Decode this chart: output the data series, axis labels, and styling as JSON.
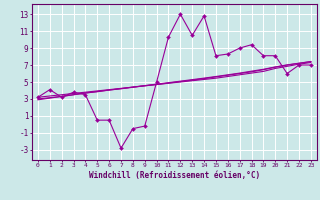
{
  "x": [
    0,
    1,
    2,
    3,
    4,
    5,
    6,
    7,
    8,
    9,
    10,
    11,
    12,
    13,
    14,
    15,
    16,
    17,
    18,
    19,
    20,
    21,
    22,
    23
  ],
  "y_main": [
    3.2,
    4.1,
    3.2,
    3.8,
    3.5,
    0.5,
    0.5,
    -2.8,
    -0.5,
    -0.2,
    5.0,
    10.3,
    13.0,
    10.5,
    12.8,
    8.1,
    8.3,
    9.0,
    9.4,
    8.1,
    8.1,
    6.0,
    7.0,
    7.0
  ],
  "regression1": [
    3.2,
    3.35,
    3.5,
    3.65,
    3.8,
    3.95,
    4.1,
    4.25,
    4.4,
    4.55,
    4.7,
    4.85,
    5.0,
    5.15,
    5.3,
    5.45,
    5.65,
    5.85,
    6.05,
    6.25,
    6.6,
    6.85,
    7.1,
    7.3
  ],
  "regression2": [
    3.0,
    3.15,
    3.3,
    3.5,
    3.7,
    3.85,
    4.05,
    4.2,
    4.38,
    4.55,
    4.7,
    4.88,
    5.05,
    5.22,
    5.4,
    5.6,
    5.8,
    6.0,
    6.2,
    6.45,
    6.75,
    7.0,
    7.2,
    7.4
  ],
  "regression3": [
    2.9,
    3.1,
    3.3,
    3.5,
    3.7,
    3.88,
    4.05,
    4.22,
    4.4,
    4.58,
    4.75,
    4.92,
    5.1,
    5.28,
    5.46,
    5.65,
    5.85,
    6.05,
    6.28,
    6.5,
    6.78,
    7.02,
    7.22,
    7.42
  ],
  "line_color": "#990099",
  "bg_color": "#cce8e8",
  "grid_color": "#aad4d4",
  "xlabel": "Windchill (Refroidissement éolien,°C)",
  "yticks": [
    -3,
    -1,
    1,
    3,
    5,
    7,
    9,
    11,
    13
  ],
  "xticks": [
    0,
    1,
    2,
    3,
    4,
    5,
    6,
    7,
    8,
    9,
    10,
    11,
    12,
    13,
    14,
    15,
    16,
    17,
    18,
    19,
    20,
    21,
    22,
    23
  ],
  "ylim": [
    -4.2,
    14.2
  ],
  "xlim": [
    -0.5,
    23.5
  ],
  "title_color": "#660066",
  "axis_color": "#660066"
}
